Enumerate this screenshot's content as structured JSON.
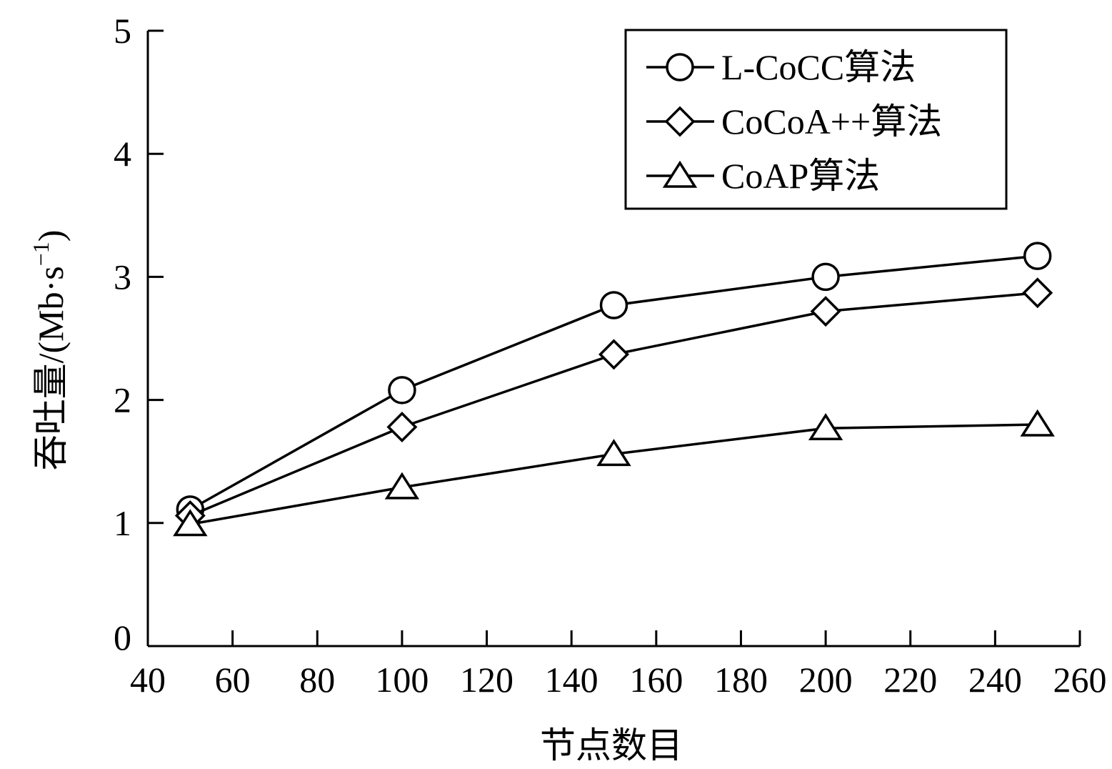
{
  "chart_data": {
    "type": "line",
    "title": "",
    "xlabel": "节点数目",
    "ylabel_main": "吞吐量/(Mb·s",
    "ylabel_sup": "−1",
    "ylabel_close": ")",
    "xlim": [
      40,
      260
    ],
    "ylim": [
      0,
      5
    ],
    "xticks": [
      40,
      60,
      80,
      100,
      120,
      140,
      160,
      180,
      200,
      220,
      240,
      260
    ],
    "yticks": [
      0,
      1,
      2,
      3,
      4,
      5
    ],
    "grid": false,
    "legend_position": "top-right",
    "x": [
      50,
      100,
      150,
      200,
      250
    ],
    "series": [
      {
        "name": "L-CoCC算法",
        "marker": "circle",
        "values": [
          1.11,
          2.08,
          2.77,
          3.0,
          3.17
        ]
      },
      {
        "name": "CoCoA++算法",
        "marker": "diamond",
        "values": [
          1.06,
          1.78,
          2.37,
          2.72,
          2.87
        ]
      },
      {
        "name": "CoAP算法",
        "marker": "triangle",
        "values": [
          0.99,
          1.29,
          1.56,
          1.77,
          1.8
        ]
      }
    ],
    "line_color": "#000000"
  }
}
